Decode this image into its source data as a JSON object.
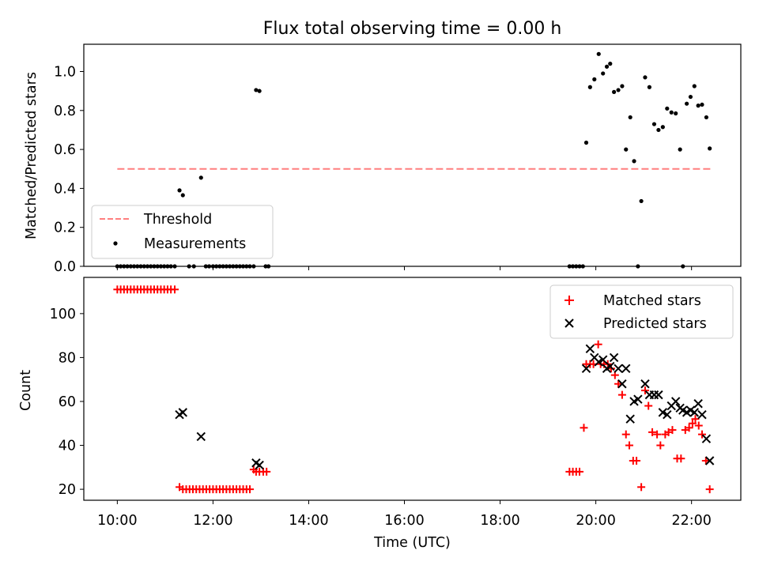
{
  "chart_data": [
    {
      "type": "scatter",
      "title": "Flux total observing time = 0.00 h",
      "xlabel": "",
      "ylabel": "Matched/Predicted stars",
      "ylim": [
        0,
        1.14
      ],
      "xlim_hours": [
        9.3,
        23.03
      ],
      "yticks": [
        "0.0",
        "0.2",
        "0.4",
        "0.6",
        "0.8",
        "1.0"
      ],
      "legend_placement": "lower-left",
      "threshold": {
        "name": "Threshold",
        "value": 0.5,
        "x_range": [
          10.0,
          22.4
        ],
        "color": "#ff7f7f",
        "style": "dashed"
      },
      "series": [
        {
          "name": "Measurements",
          "color": "#000000",
          "marker": "dot",
          "x": [
            10.0,
            10.07,
            10.14,
            10.21,
            10.28,
            10.35,
            10.42,
            10.49,
            10.56,
            10.63,
            10.7,
            10.77,
            10.84,
            10.91,
            10.98,
            11.05,
            11.12,
            11.2,
            11.3,
            11.37,
            11.5,
            11.6,
            11.75,
            11.85,
            11.92,
            12.0,
            12.07,
            12.14,
            12.21,
            12.28,
            12.35,
            12.42,
            12.49,
            12.56,
            12.63,
            12.7,
            12.77,
            12.85,
            12.9,
            12.97,
            13.1,
            13.16,
            19.45,
            19.52,
            19.59,
            19.66,
            19.73,
            19.8,
            19.88,
            19.97,
            20.06,
            20.15,
            20.23,
            20.3,
            20.38,
            20.47,
            20.55,
            20.63,
            20.72,
            20.8,
            20.88,
            20.95,
            21.03,
            21.12,
            21.22,
            21.31,
            21.4,
            21.49,
            21.58,
            21.67,
            21.76,
            21.82,
            21.9,
            21.98,
            22.06,
            22.14,
            22.22,
            22.31,
            22.38
          ],
          "y": [
            0,
            0,
            0,
            0,
            0,
            0,
            0,
            0,
            0,
            0,
            0,
            0,
            0,
            0,
            0,
            0,
            0,
            0,
            0.39,
            0.365,
            0,
            0,
            0.455,
            0,
            0,
            0,
            0,
            0,
            0,
            0,
            0,
            0,
            0,
            0,
            0,
            0,
            0,
            0,
            0.905,
            0.9,
            0,
            0,
            0,
            0,
            0,
            0,
            0,
            0.635,
            0.92,
            0.96,
            1.09,
            0.99,
            1.025,
            1.04,
            0.895,
            0.905,
            0.925,
            0.6,
            0.765,
            0.54,
            0,
            0.335,
            0.97,
            0.92,
            0.73,
            0.7,
            0.715,
            0.81,
            0.79,
            0.785,
            0.6,
            0,
            0.835,
            0.87,
            0.925,
            0.825,
            0.83,
            0.765,
            0.605
          ]
        }
      ]
    },
    {
      "type": "scatter",
      "title": "",
      "xlabel": "Time (UTC)",
      "ylabel": "Count",
      "ylim": [
        15.0,
        116.5
      ],
      "xlim_hours": [
        9.3,
        23.03
      ],
      "yticks": [
        "20",
        "40",
        "60",
        "80",
        "100"
      ],
      "xticks": [
        "10:00",
        "12:00",
        "14:00",
        "16:00",
        "18:00",
        "20:00",
        "22:00"
      ],
      "legend_placement": "upper-right",
      "series": [
        {
          "name": "Matched stars",
          "color": "#ff0000",
          "marker": "plus",
          "x": [
            10.0,
            10.07,
            10.14,
            10.21,
            10.28,
            10.35,
            10.42,
            10.49,
            10.56,
            10.63,
            10.7,
            10.77,
            10.84,
            10.91,
            10.98,
            11.05,
            11.12,
            11.2,
            11.3,
            11.37,
            11.44,
            11.51,
            11.58,
            11.65,
            11.72,
            11.79,
            11.86,
            11.93,
            12.0,
            12.07,
            12.14,
            12.21,
            12.28,
            12.35,
            12.42,
            12.49,
            12.56,
            12.63,
            12.7,
            12.77,
            12.85,
            12.9,
            12.97,
            13.05,
            13.12,
            19.45,
            19.52,
            19.59,
            19.66,
            19.75,
            19.8,
            19.88,
            19.95,
            20.05,
            20.1,
            20.17,
            20.25,
            20.32,
            20.4,
            20.47,
            20.55,
            20.63,
            20.7,
            20.78,
            20.85,
            20.95,
            21.03,
            21.1,
            21.18,
            21.28,
            21.35,
            21.45,
            21.52,
            21.6,
            21.7,
            21.78,
            21.87,
            21.95,
            22.02,
            22.08,
            22.15,
            22.22,
            22.3,
            22.38
          ],
          "y": [
            111,
            111,
            111,
            111,
            111,
            111,
            111,
            111,
            111,
            111,
            111,
            111,
            111,
            111,
            111,
            111,
            111,
            111,
            21,
            20,
            20,
            20,
            20,
            20,
            20,
            20,
            20,
            20,
            20,
            20,
            20,
            20,
            20,
            20,
            20,
            20,
            20,
            20,
            20,
            20,
            29,
            28,
            28,
            28,
            28,
            28,
            28,
            28,
            28,
            48,
            77,
            77,
            77,
            86,
            77,
            77,
            77,
            75,
            72,
            68,
            63,
            45,
            40,
            33,
            33,
            21,
            65,
            58,
            46,
            45,
            40,
            45,
            46,
            47,
            34,
            34,
            47,
            48,
            50,
            52,
            49,
            45,
            33,
            20
          ]
        },
        {
          "name": "Predicted stars",
          "color": "#000000",
          "marker": "x",
          "x": [
            11.3,
            11.37,
            11.75,
            12.9,
            12.97,
            19.8,
            19.88,
            19.97,
            20.06,
            20.15,
            20.23,
            20.3,
            20.38,
            20.47,
            20.55,
            20.63,
            20.72,
            20.8,
            20.88,
            21.03,
            21.12,
            21.22,
            21.31,
            21.4,
            21.49,
            21.58,
            21.67,
            21.76,
            21.82,
            21.9,
            21.98,
            22.06,
            22.14,
            22.22,
            22.31,
            22.38
          ],
          "y": [
            54,
            55,
            44,
            32,
            31,
            75,
            84,
            80,
            78,
            79,
            75,
            76,
            80,
            75,
            68,
            75,
            52,
            60,
            61,
            68,
            63,
            63,
            63,
            55,
            54,
            58,
            60,
            57,
            56,
            55,
            56,
            55,
            59,
            54,
            43,
            33
          ]
        }
      ]
    }
  ]
}
